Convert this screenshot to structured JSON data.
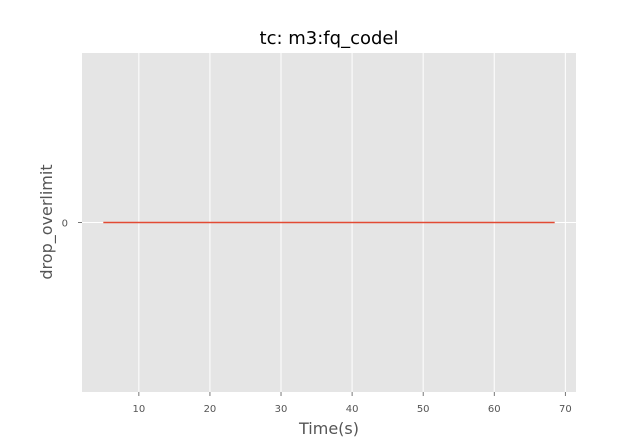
{
  "chart_data": {
    "type": "line",
    "title": "tc: m3:fq_codel",
    "xlabel": "Time(s)",
    "ylabel": "drop_overlimit",
    "xlim": [
      2,
      71.5
    ],
    "ylim": [
      -0.05,
      0.05
    ],
    "x_ticks": [
      10,
      20,
      30,
      40,
      50,
      60,
      70
    ],
    "y_ticks": [
      0
    ],
    "grid": true,
    "series": [
      {
        "x": [
          5,
          68.5
        ],
        "y": [
          0,
          0
        ],
        "color": "#e24a33"
      }
    ],
    "colors": {
      "plot_background": "#e5e5e5",
      "grid": "#ffffff",
      "tick": "#555555"
    }
  }
}
